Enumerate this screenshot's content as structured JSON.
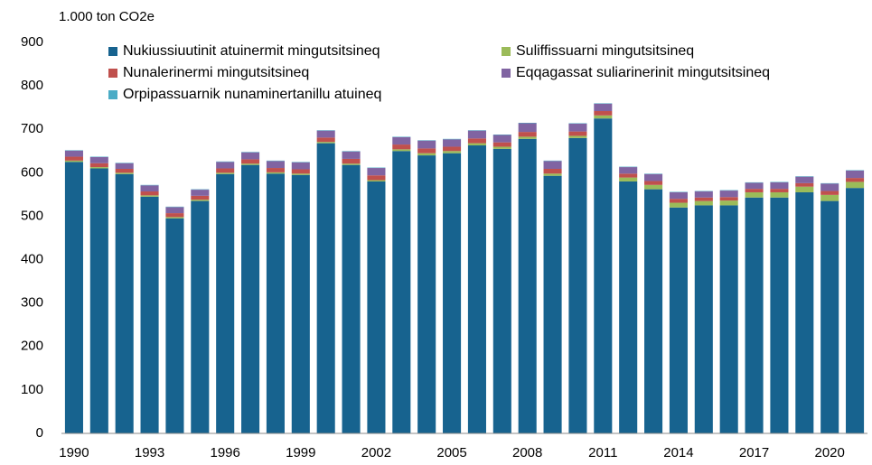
{
  "chart_data": {
    "type": "stacked_bar",
    "y_axis_label": "1.000 ton CO2e",
    "categories": [
      "1990",
      null,
      null,
      "1993",
      null,
      null,
      "1996",
      null,
      null,
      "1999",
      null,
      null,
      "2002",
      null,
      null,
      "2005",
      null,
      null,
      "2008",
      null,
      null,
      "2011",
      null,
      null,
      "2014",
      null,
      null,
      "2017",
      null,
      null,
      "2020",
      null
    ],
    "series": [
      {
        "name": "Nukiussiuutinit atuinermit mingutsitsineq",
        "color": "#17638f",
        "values": [
          625,
          610,
          597,
          545,
          495,
          535,
          597,
          618,
          598,
          595,
          668,
          618,
          580,
          650,
          640,
          645,
          663,
          655,
          678,
          593,
          680,
          725,
          580,
          562,
          520,
          525,
          525,
          543,
          543,
          555,
          535,
          565
        ]
      },
      {
        "name": "Suliffissuarni mingutsitsineq",
        "color": "#9bbb59",
        "values": [
          3,
          3,
          3,
          3,
          3,
          3,
          3,
          3,
          3,
          3,
          3,
          3,
          3,
          4,
          5,
          5,
          5,
          5,
          5,
          5,
          5,
          7,
          9,
          10,
          11,
          10,
          11,
          12,
          12,
          13,
          14,
          14
        ]
      },
      {
        "name": "Nunalerinermi mingutsitsineq",
        "color": "#c0504d",
        "values": [
          9,
          9,
          9,
          9,
          9,
          9,
          10,
          10,
          10,
          10,
          10,
          11,
          11,
          11,
          11,
          10,
          11,
          10,
          11,
          11,
          10,
          10,
          9,
          9,
          9,
          8,
          8,
          8,
          8,
          8,
          9,
          9
        ]
      },
      {
        "name": "Eqqagassat suliarinerinit mingutsitsineq",
        "color": "#8064a2",
        "values": [
          14,
          14,
          13,
          14,
          14,
          14,
          15,
          16,
          16,
          16,
          16,
          17,
          17,
          17,
          18,
          17,
          18,
          17,
          20,
          18,
          18,
          17,
          15,
          16,
          15,
          14,
          15,
          14,
          15,
          15,
          17,
          17
        ]
      },
      {
        "name": "Orpipassuarnik nunaminertanillu atuineq",
        "color": "#4bacc6",
        "values": [
          1,
          1,
          1,
          1,
          1,
          1,
          1,
          1,
          1,
          1,
          1,
          1,
          1,
          1,
          1,
          1,
          1,
          1,
          1,
          1,
          1,
          1,
          1,
          1,
          1,
          1,
          1,
          1,
          1,
          1,
          1,
          1
        ]
      }
    ],
    "ylim": [
      0,
      900
    ],
    "yticks": [
      0,
      100,
      200,
      300,
      400,
      500,
      600,
      700,
      800,
      900
    ]
  }
}
